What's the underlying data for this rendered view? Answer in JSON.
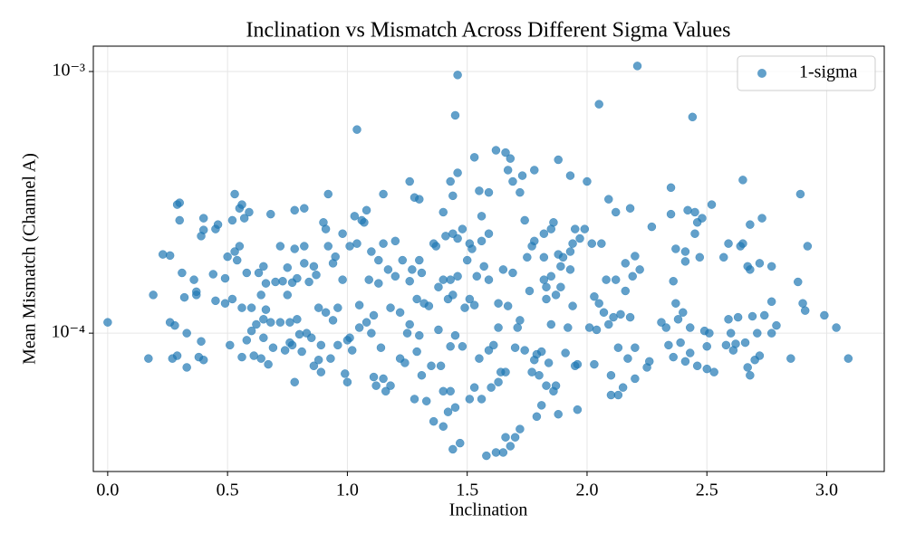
{
  "chart_data": {
    "type": "scatter",
    "title": "Inclination vs Mismatch Across Different Sigma Values",
    "xlabel": "Inclination",
    "ylabel": "Mean Mismatch (Channel A)",
    "xlim": [
      -0.06,
      3.24
    ],
    "ylim": [
      2.96e-05,
      0.00125
    ],
    "yscale": "log",
    "grid": true,
    "legend": "upper right",
    "xticks": [
      {
        "value": 0,
        "label": "0.0"
      },
      0.5,
      {
        "value": 1,
        "label": "1.0"
      },
      1.5,
      {
        "value": 2,
        "label": "2.0"
      },
      2.5,
      {
        "value": 3,
        "label": "3.0"
      }
    ],
    "yticks": [
      {
        "value": 0.0001,
        "label": "10⁻⁴"
      },
      {
        "value": 0.001,
        "label": "10⁻³"
      }
    ],
    "series": [
      {
        "name": "1-sigma",
        "color": "#1f77b4",
        "x": [
          0.0,
          0.17,
          0.19,
          0.23,
          0.26,
          0.26,
          0.27,
          0.28,
          0.29,
          0.29,
          0.3,
          0.3,
          0.31,
          0.32,
          0.33,
          0.33,
          0.36,
          0.37,
          0.37,
          0.38,
          0.39,
          0.39,
          0.4,
          0.4,
          0.4,
          0.44,
          0.45,
          0.45,
          0.46,
          0.49,
          0.49,
          0.5,
          0.51,
          0.52,
          0.52,
          0.53,
          0.53,
          0.54,
          0.55,
          0.55,
          0.56,
          0.56,
          0.56,
          0.57,
          0.58,
          0.58,
          0.59,
          0.6,
          0.6,
          0.61,
          0.62,
          0.63,
          0.64,
          0.64,
          0.65,
          0.65,
          0.65,
          0.66,
          0.66,
          0.67,
          0.68,
          0.68,
          0.69,
          0.7,
          0.72,
          0.72,
          0.73,
          0.74,
          0.75,
          0.75,
          0.76,
          0.76,
          0.77,
          0.77,
          0.78,
          0.78,
          0.78,
          0.79,
          0.79,
          0.8,
          0.81,
          0.82,
          0.82,
          0.82,
          0.83,
          0.84,
          0.85,
          0.86,
          0.86,
          0.87,
          0.88,
          0.88,
          0.89,
          0.89,
          0.9,
          0.91,
          0.91,
          0.92,
          0.92,
          0.93,
          0.94,
          0.94,
          0.95,
          0.96,
          0.96,
          0.98,
          0.98,
          0.99,
          1.0,
          1.0,
          1.01,
          1.01,
          1.02,
          1.03,
          1.04,
          1.04,
          1.05,
          1.05,
          1.06,
          1.07,
          1.08,
          1.08,
          1.09,
          1.1,
          1.1,
          1.11,
          1.11,
          1.12,
          1.13,
          1.13,
          1.14,
          1.15,
          1.15,
          1.15,
          1.16,
          1.17,
          1.18,
          1.18,
          1.2,
          1.2,
          1.22,
          1.22,
          1.23,
          1.24,
          1.25,
          1.26,
          1.26,
          1.26,
          1.27,
          1.28,
          1.28,
          1.29,
          1.29,
          1.3,
          1.3,
          1.3,
          1.31,
          1.31,
          1.32,
          1.33,
          1.34,
          1.35,
          1.36,
          1.36,
          1.37,
          1.38,
          1.38,
          1.39,
          1.4,
          1.4,
          1.4,
          1.4,
          1.41,
          1.42,
          1.42,
          1.43,
          1.43,
          1.43,
          1.43,
          1.44,
          1.44,
          1.44,
          1.44,
          1.45,
          1.45,
          1.45,
          1.46,
          1.46,
          1.46,
          1.46,
          1.47,
          1.48,
          1.48,
          1.49,
          1.5,
          1.51,
          1.51,
          1.51,
          1.52,
          1.53,
          1.53,
          1.53,
          1.54,
          1.55,
          1.55,
          1.56,
          1.56,
          1.56,
          1.57,
          1.58,
          1.59,
          1.59,
          1.59,
          1.59,
          1.6,
          1.61,
          1.62,
          1.62,
          1.63,
          1.63,
          1.63,
          1.64,
          1.65,
          1.65,
          1.66,
          1.66,
          1.66,
          1.67,
          1.67,
          1.68,
          1.68,
          1.69,
          1.69,
          1.7,
          1.7,
          1.71,
          1.72,
          1.72,
          1.72,
          1.73,
          1.74,
          1.74,
          1.75,
          1.76,
          1.77,
          1.77,
          1.78,
          1.78,
          1.78,
          1.79,
          1.79,
          1.8,
          1.81,
          1.81,
          1.82,
          1.82,
          1.82,
          1.83,
          1.83,
          1.83,
          1.84,
          1.85,
          1.85,
          1.85,
          1.86,
          1.86,
          1.87,
          1.87,
          1.88,
          1.88,
          1.88,
          1.89,
          1.89,
          1.9,
          1.91,
          1.92,
          1.93,
          1.93,
          1.93,
          1.94,
          1.94,
          1.95,
          1.95,
          1.96,
          1.96,
          1.97,
          1.99,
          2.0,
          2.01,
          2.02,
          2.03,
          2.03,
          2.04,
          2.05,
          2.05,
          2.06,
          2.07,
          2.08,
          2.09,
          2.09,
          2.1,
          2.1,
          2.11,
          2.12,
          2.12,
          2.13,
          2.13,
          2.14,
          2.15,
          2.16,
          2.16,
          2.17,
          2.18,
          2.18,
          2.19,
          2.2,
          2.2,
          2.2,
          2.21,
          2.22,
          2.25,
          2.26,
          2.27,
          2.31,
          2.33,
          2.34,
          2.35,
          2.35,
          2.36,
          2.36,
          2.37,
          2.37,
          2.38,
          2.39,
          2.4,
          2.41,
          2.41,
          2.41,
          2.42,
          2.43,
          2.43,
          2.44,
          2.45,
          2.45,
          2.46,
          2.46,
          2.47,
          2.48,
          2.49,
          2.5,
          2.5,
          2.51,
          2.52,
          2.53,
          2.57,
          2.58,
          2.59,
          2.59,
          2.6,
          2.61,
          2.62,
          2.63,
          2.64,
          2.65,
          2.65,
          2.66,
          2.67,
          2.67,
          2.68,
          2.68,
          2.68,
          2.69,
          2.7,
          2.71,
          2.72,
          2.72,
          2.73,
          2.74,
          2.77,
          2.77,
          2.77,
          2.79,
          2.85,
          2.88,
          2.89,
          2.9,
          2.91,
          2.92,
          2.99,
          3.04,
          3.09
        ],
        "values": [
          0.00011,
          8e-05,
          0.00014,
          0.0002,
          0.00011,
          0.000198,
          8e-05,
          0.000107,
          8.2e-05,
          0.00031,
          0.000315,
          0.00027,
          0.00017,
          0.000137,
          0.0001,
          7.4e-05,
          0.00016,
          0.000144,
          0.00014,
          8.1e-05,
          0.000235,
          9.3e-05,
          0.000275,
          0.000248,
          7.9e-05,
          0.000168,
          0.000133,
          0.00025,
          0.00026,
          0.00013,
          0.000162,
          0.000196,
          9e-05,
          0.000135,
          0.00027,
          0.00034,
          0.000205,
          0.00019,
          0.000215,
          0.0003,
          0.00031,
          0.000125,
          8.1e-05,
          0.000275,
          0.00017,
          9.4e-05,
          0.00029,
          0.000125,
          0.000102,
          8.2e-05,
          0.000108,
          0.00017,
          0.00014,
          8e-05,
          0.00018,
          9.6e-05,
          0.000113,
          0.000123,
          0.000155,
          7.6e-05,
          0.000285,
          0.00011,
          8.8e-05,
          0.000157,
          0.000215,
          0.00011,
          0.000158,
          8.6e-05,
          0.00014,
          0.000178,
          9.2e-05,
          0.00011,
          9e-05,
          0.000156,
          0.000295,
          6.5e-05,
          0.00021,
          0.000162,
          0.000113,
          9.9e-05,
          8.5e-05,
          0.0003,
          0.000215,
          0.000185,
          0.0001,
          0.000157,
          9.6e-05,
          0.00018,
          7.5e-05,
          0.000167,
          7.9e-05,
          0.000125,
          9e-05,
          7.1e-05,
          0.000265,
          0.00025,
          0.00012,
          0.00034,
          0.000215,
          8e-05,
          0.000112,
          0.000185,
          0.000196,
          0.000125,
          9e-05,
          0.00024,
          0.00016,
          7e-05,
          9.4e-05,
          6.5e-05,
          0.000215,
          9.6e-05,
          8.6e-05,
          0.00028,
          0.0006,
          0.00022,
          0.000128,
          0.000105,
          0.00027,
          0.000265,
          0.000295,
          0.00011,
          0.00016,
          0.000205,
          0.0001,
          6.8e-05,
          0.000117,
          6.3e-05,
          0.000155,
          0.00019,
          8.8e-05,
          0.00022,
          0.00034,
          6.7e-05,
          6e-05,
          0.000175,
          0.000125,
          6.3e-05,
          0.000165,
          0.000225,
          0.00012,
          8e-05,
          0.00019,
          7.7e-05,
          0.0001,
          0.00038,
          0.000158,
          0.000108,
          0.000175,
          0.00033,
          5.6e-05,
          0.000135,
          8.5e-05,
          0.000325,
          0.00019,
          9.8e-05,
          0.00017,
          6.9e-05,
          0.00013,
          5.5e-05,
          0.000127,
          7.5e-05,
          0.00022,
          4.6e-05,
          0.000215,
          0.00015,
          0.000103,
          7.5e-05,
          0.00029,
          0.00016,
          6e-05,
          4.4e-05,
          0.000235,
          0.000135,
          5e-05,
          0.00038,
          0.00016,
          8.9e-05,
          6e-05,
          0.000335,
          0.00024,
          0.00014,
          3.6e-05,
          0.00068,
          9.8e-05,
          5.2e-05,
          0.00097,
          0.00041,
          0.00023,
          0.000165,
          3.8e-05,
          0.00025,
          8.9e-05,
          0.000125,
          0.00019,
          0.00022,
          0.000135,
          5.6e-05,
          0.00021,
          0.00047,
          0.000128,
          6.2e-05,
          0.000165,
          0.00035,
          8e-05,
          0.00028,
          0.000225,
          5.6e-05,
          0.00018,
          3.4e-05,
          0.000345,
          0.00024,
          0.00016,
          8.6e-05,
          6.2e-05,
          9e-05,
          0.0005,
          3.5e-05,
          0.00013,
          0.000105,
          6.5e-05,
          7.1e-05,
          0.000175,
          3.5e-05,
          0.00049,
          7.1e-05,
          4e-05,
          0.00042,
          0.000127,
          3.7e-05,
          0.000465,
          0.00038,
          0.00017,
          8.8e-05,
          4e-05,
          0.000105,
          0.000345,
          0.000112,
          4.3e-05,
          0.0004,
          0.00027,
          8.6e-05,
          0.000195,
          0.000145,
          0.000215,
          7.1e-05,
          7.9e-05,
          0.00042,
          0.000225,
          8.3e-05,
          4.8e-05,
          6.9e-05,
          8.5e-05,
          5.3e-05,
          0.00024,
          0.000195,
          0.00016,
          0.00015,
          0.000135,
          6.3e-05,
          7.7e-05,
          0.000108,
          0.000165,
          0.00025,
          6e-05,
          0.000265,
          0.00014,
          6.3e-05,
          0.00046,
          0.0002,
          4.9e-05,
          0.00018,
          0.00015,
          0.000195,
          8.4e-05,
          0.000105,
          0.0004,
          0.000205,
          0.000175,
          0.000127,
          0.00022,
          7.5e-05,
          0.00025,
          7.6e-05,
          5.1e-05,
          0.00023,
          0.00025,
          0.00038,
          0.000105,
          0.00022,
          7.6e-05,
          0.000138,
          0.000103,
          0.00075,
          0.00013,
          0.00022,
          0.00012,
          0.00016,
          0.000325,
          0.000108,
          6.9e-05,
          5.8e-05,
          0.000115,
          0.00029,
          0.00016,
          8.8e-05,
          5.8e-05,
          0.000118,
          6.2e-05,
          0.000145,
          0.000185,
          8e-05,
          0.0003,
          0.000115,
          0.000165,
          0.000197,
          8.8e-05,
          6.7e-05,
          0.00105,
          0.000175,
          7.4e-05,
          7.8e-05,
          0.000255,
          0.00011,
          0.000105,
          9e-05,
          0.000285,
          0.00036,
          0.000158,
          8.1e-05,
          0.00021,
          0.00013,
          0.000113,
          9.2e-05,
          0.00012,
          0.000205,
          0.000188,
          7.8e-05,
          0.000295,
          8.4e-05,
          0.000105,
          0.00067,
          0.00029,
          0.00024,
          0.000265,
          7.5e-05,
          0.000195,
          0.000275,
          0.000102,
          8.9e-05,
          7.3e-05,
          0.0001,
          0.00031,
          7.1e-05,
          0.000195,
          9e-05,
          0.00022,
          0.000113,
          0.0001,
          8.6e-05,
          9.1e-05,
          0.000115,
          0.000215,
          0.000385,
          0.00022,
          9.2e-05,
          0.00018,
          7.4e-05,
          0.000175,
          6.9e-05,
          0.00026,
          0.000116,
          7.9e-05,
          0.0001,
          8.2e-05,
          0.000185,
          0.000275,
          0.000117,
          0.00018,
          0.000132,
          0.0001,
          0.000107,
          8e-05,
          0.000157,
          0.00034,
          0.00013,
          0.000122,
          0.000215,
          0.000117,
          0.000105,
          8e-05
        ]
      }
    ]
  }
}
